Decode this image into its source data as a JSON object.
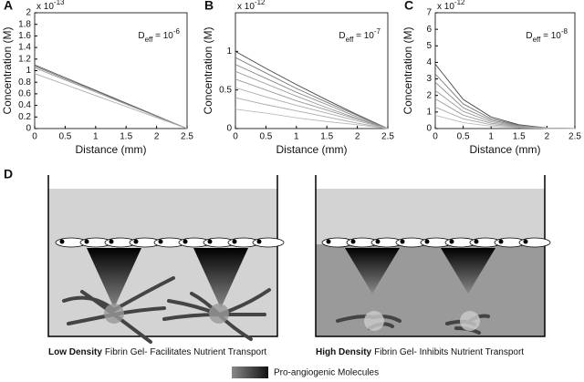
{
  "chart_data": [
    {
      "type": "line",
      "panel_label": "A",
      "y_multiplier": {
        "base": "x 10",
        "sup": "-13"
      },
      "annotation": {
        "base": "D",
        "sub": "eff",
        "rest": " = 10",
        "sup": "-6"
      },
      "x_label": "Distance (mm)",
      "y_label": "Concentration (M)",
      "xlim": [
        0,
        2.5
      ],
      "xticks": [
        0,
        0.5,
        1,
        1.5,
        2,
        2.5
      ],
      "ylim": [
        0,
        2
      ],
      "yticks": [
        0,
        0.2,
        0.4,
        0.6,
        0.8,
        1,
        1.2,
        1.4,
        1.6,
        1.8,
        2
      ],
      "x": [
        0,
        0.5,
        1,
        1.5,
        2,
        2.5
      ],
      "series": [
        {
          "color": "#555555",
          "values": [
            1.1,
            0.88,
            0.66,
            0.44,
            0.22,
            0
          ]
        },
        {
          "color": "#777777",
          "values": [
            1.08,
            0.86,
            0.65,
            0.43,
            0.21,
            0
          ]
        },
        {
          "color": "#999999",
          "values": [
            1.05,
            0.84,
            0.63,
            0.42,
            0.21,
            0
          ]
        },
        {
          "color": "#aaaaaa",
          "values": [
            0.95,
            0.76,
            0.57,
            0.38,
            0.19,
            0
          ]
        }
      ]
    },
    {
      "type": "line",
      "panel_label": "B",
      "y_multiplier": {
        "base": "x 10",
        "sup": "-12"
      },
      "annotation": {
        "base": "D",
        "sub": "eff",
        "rest": " = 10",
        "sup": "-7"
      },
      "x_label": "Distance (mm)",
      "y_label": "Concentration (M)",
      "xlim": [
        0,
        2.5
      ],
      "xticks": [
        0,
        0.5,
        1,
        1.5,
        2,
        2.5
      ],
      "ylim": [
        0,
        1.5
      ],
      "yticks": [
        0,
        0.5,
        1
      ],
      "x": [
        0,
        0.5,
        1,
        1.5,
        2,
        2.5
      ],
      "series": [
        {
          "color": "#444444",
          "values": [
            1,
            0.78,
            0.57,
            0.37,
            0.18,
            0
          ]
        },
        {
          "color": "#777777",
          "values": [
            0.92,
            0.72,
            0.52,
            0.34,
            0.17,
            0
          ]
        },
        {
          "color": "#888888",
          "values": [
            0.83,
            0.65,
            0.47,
            0.31,
            0.15,
            0
          ]
        },
        {
          "color": "#999999",
          "values": [
            0.74,
            0.58,
            0.42,
            0.27,
            0.13,
            0
          ]
        },
        {
          "color": "#999999",
          "values": [
            0.64,
            0.5,
            0.36,
            0.24,
            0.12,
            0
          ]
        },
        {
          "color": "#aaaaaa",
          "values": [
            0.53,
            0.41,
            0.3,
            0.2,
            0.1,
            0
          ]
        },
        {
          "color": "#aaaaaa",
          "values": [
            0.4,
            0.31,
            0.23,
            0.15,
            0.07,
            0
          ]
        },
        {
          "color": "#bbbbbb",
          "values": [
            0.25,
            0.2,
            0.14,
            0.09,
            0.05,
            0
          ]
        }
      ]
    },
    {
      "type": "line",
      "panel_label": "C",
      "y_multiplier": {
        "base": "x 10",
        "sup": "-12"
      },
      "annotation": {
        "base": "D",
        "sub": "eff",
        "rest": " = 10",
        "sup": "-8"
      },
      "x_label": "Distance (mm)",
      "y_label": "Concentration (M)",
      "xlim": [
        0,
        2.5
      ],
      "xticks": [
        0,
        0.5,
        1,
        1.5,
        2,
        2.5
      ],
      "ylim": [
        0,
        7
      ],
      "yticks": [
        0,
        1,
        2,
        3,
        4,
        5,
        6,
        7
      ],
      "x": [
        0,
        0.5,
        1,
        1.5,
        2,
        2.5
      ],
      "series": [
        {
          "color": "#444444",
          "values": [
            3.9,
            1.76,
            0.7,
            0.23,
            0.04,
            0
          ]
        },
        {
          "color": "#777777",
          "values": [
            3.3,
            1.49,
            0.59,
            0.2,
            0.03,
            0
          ]
        },
        {
          "color": "#888888",
          "values": [
            2.8,
            1.26,
            0.5,
            0.17,
            0.03,
            0
          ]
        },
        {
          "color": "#999999",
          "values": [
            2.3,
            1.04,
            0.41,
            0.14,
            0.02,
            0
          ]
        },
        {
          "color": "#999999",
          "values": [
            1.8,
            0.81,
            0.32,
            0.11,
            0.02,
            0
          ]
        },
        {
          "color": "#aaaaaa",
          "values": [
            1.3,
            0.59,
            0.23,
            0.08,
            0.01,
            0
          ]
        },
        {
          "color": "#bbbbbb",
          "values": [
            0.8,
            0.36,
            0.14,
            0.05,
            0.01,
            0
          ]
        }
      ]
    }
  ],
  "panel_d": {
    "label": "D",
    "left_caption": {
      "bold": "Low Density",
      "text": "Fibrin Gel- Facilitates Nutrient Transport"
    },
    "right_caption": {
      "bold": "High Density",
      "text": "Fibrin Gel- Inhibits Nutrient Transport"
    },
    "legend": "Pro-angiogenic Molecules"
  }
}
